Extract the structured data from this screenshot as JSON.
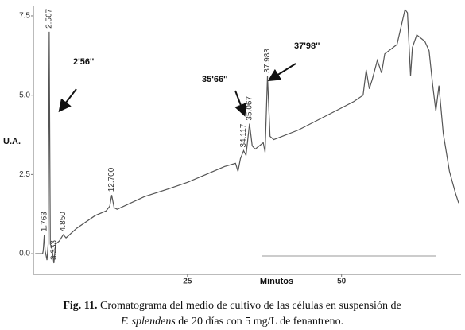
{
  "chart_data": {
    "type": "line",
    "y_label": "U.A.",
    "x_label": "Minutos",
    "color": "#555555",
    "x": [
      0.3,
      1.5,
      1.6,
      1.763,
      1.9,
      2.2,
      2.4,
      2.567,
      2.75,
      3.0,
      3.333,
      3.6,
      4.2,
      4.85,
      5.3,
      7,
      10,
      11.8,
      12.4,
      12.7,
      13.1,
      13.6,
      18,
      22,
      25,
      28,
      31,
      32.8,
      33.2,
      33.6,
      34.117,
      34.5,
      35.067,
      35.5,
      36.0,
      37.3,
      37.6,
      37.983,
      38.4,
      39,
      43,
      48,
      52,
      53.5,
      54,
      54.5,
      55,
      55.8,
      56.5,
      57,
      59,
      60.3,
      60.7,
      61.2,
      61.5,
      62.2,
      63.5,
      64.2,
      64.8,
      65.3,
      65.8,
      66.5,
      67.5,
      68.5,
      69
    ],
    "values": [
      0.0,
      0.0,
      0.1,
      0.6,
      0.1,
      -0.2,
      0.3,
      7.0,
      0.3,
      0.2,
      -0.3,
      0.3,
      0.4,
      0.6,
      0.5,
      0.8,
      1.2,
      1.35,
      1.5,
      1.85,
      1.45,
      1.4,
      1.8,
      2.05,
      2.25,
      2.5,
      2.75,
      2.85,
      2.6,
      3.0,
      3.25,
      3.1,
      4.1,
      3.4,
      3.3,
      3.5,
      3.2,
      5.6,
      3.7,
      3.6,
      3.9,
      4.4,
      4.8,
      5.0,
      5.8,
      5.2,
      5.5,
      6.1,
      5.7,
      6.3,
      6.6,
      7.7,
      7.6,
      5.6,
      6.5,
      6.9,
      6.7,
      6.4,
      5.3,
      4.5,
      5.3,
      3.8,
      2.6,
      1.9,
      1.6
    ],
    "xlim": [
      0,
      69
    ],
    "ylim": [
      -0.65,
      7.8
    ],
    "xticks": [
      25,
      50
    ],
    "yticks": [
      {
        "value": 0,
        "label": "0.0"
      },
      {
        "value": 2.5,
        "label": "2.5"
      },
      {
        "value": 5,
        "label": "5.0"
      },
      {
        "value": 7.5,
        "label": "7.5"
      }
    ],
    "peak_labels": [
      {
        "value": 1.763,
        "label": "1.763"
      },
      {
        "value": 2.567,
        "label": "2.567"
      },
      {
        "value": 3.333,
        "label": "3.333"
      },
      {
        "value": 4.85,
        "label": "4.850"
      },
      {
        "value": 12.7,
        "label": "12.700"
      },
      {
        "value": 34.117,
        "label": "34.117"
      },
      {
        "value": 35.067,
        "label": "35.067"
      },
      {
        "value": 37.983,
        "label": "37.983"
      }
    ],
    "annotations": [
      "2'56''",
      "35'66''",
      "37'98''"
    ],
    "caption": {
      "label": "Fig. 11.",
      "line1": "Cromatograma  del medio de cultivo de las células en suspensión de",
      "species": "F. splendens",
      "line2": " de 20 días con 5 mg/L de fenantreno."
    }
  }
}
